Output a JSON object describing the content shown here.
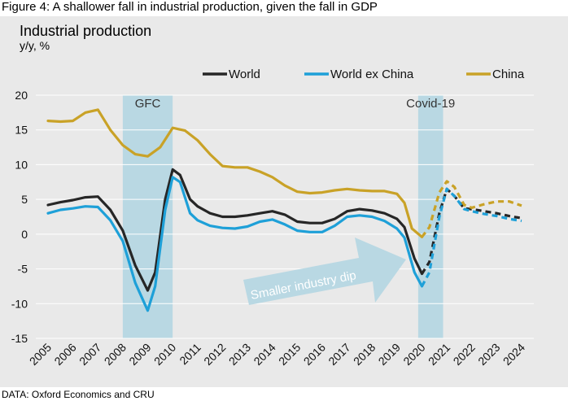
{
  "figure_title": "Figure 4: A shallower fall in industrial production, given the fall in GDP",
  "source": "DATA: Oxford Economics and CRU",
  "colors": {
    "world": "#262626",
    "world_ex_china": "#1ea0d8",
    "china": "#c9a227",
    "shade": "#b9d8e3",
    "arrow": "#b9d8e3",
    "panel": "#e9e9e9",
    "grid": "#ffffff"
  },
  "chart_data": {
    "type": "line",
    "title": "Industrial production",
    "ylabel": "y/y, %",
    "xlabel": "",
    "ylim": [
      -15,
      20
    ],
    "yticks": [
      20,
      15,
      10,
      5,
      0,
      -5,
      -10,
      -15
    ],
    "x_ticks": [
      "2005",
      "2006",
      "2007",
      "2008",
      "2009",
      "2010",
      "2011",
      "2012",
      "2013",
      "2014",
      "2015",
      "2016",
      "2017",
      "2018",
      "2019",
      "2020",
      "2021",
      "2022",
      "2023",
      "2024"
    ],
    "legend_position": "top",
    "grid": true,
    "forecast_from": 2020.0,
    "series": [
      {
        "name": "World",
        "color": "#262626",
        "points": [
          [
            2005.0,
            4.2
          ],
          [
            2005.5,
            4.6
          ],
          [
            2006.0,
            4.9
          ],
          [
            2006.5,
            5.3
          ],
          [
            2007.0,
            5.4
          ],
          [
            2007.5,
            3.5
          ],
          [
            2008.0,
            0.5
          ],
          [
            2008.5,
            -4.5
          ],
          [
            2009.0,
            -8.1
          ],
          [
            2009.3,
            -5.5
          ],
          [
            2009.7,
            5.0
          ],
          [
            2010.0,
            9.3
          ],
          [
            2010.3,
            8.5
          ],
          [
            2010.7,
            5.0
          ],
          [
            2011.0,
            4.0
          ],
          [
            2011.5,
            3.0
          ],
          [
            2012.0,
            2.5
          ],
          [
            2012.5,
            2.5
          ],
          [
            2013.0,
            2.7
          ],
          [
            2013.5,
            3.0
          ],
          [
            2014.0,
            3.3
          ],
          [
            2014.5,
            2.8
          ],
          [
            2015.0,
            1.8
          ],
          [
            2015.5,
            1.6
          ],
          [
            2016.0,
            1.6
          ],
          [
            2016.5,
            2.2
          ],
          [
            2017.0,
            3.3
          ],
          [
            2017.5,
            3.6
          ],
          [
            2018.0,
            3.4
          ],
          [
            2018.5,
            3.0
          ],
          [
            2019.0,
            2.2
          ],
          [
            2019.3,
            1.0
          ],
          [
            2019.7,
            -3.5
          ],
          [
            2020.0,
            -5.7
          ],
          [
            2020.3,
            -4.0
          ],
          [
            2020.7,
            3.0
          ],
          [
            2021.0,
            6.5
          ],
          [
            2021.3,
            5.5
          ],
          [
            2021.7,
            3.7
          ],
          [
            2022.0,
            3.6
          ],
          [
            2022.5,
            3.3
          ],
          [
            2023.0,
            3.0
          ],
          [
            2023.5,
            2.6
          ],
          [
            2024.0,
            2.3
          ]
        ]
      },
      {
        "name": "World ex China",
        "color": "#1ea0d8",
        "points": [
          [
            2005.0,
            3.0
          ],
          [
            2005.5,
            3.5
          ],
          [
            2006.0,
            3.7
          ],
          [
            2006.5,
            4.0
          ],
          [
            2007.0,
            3.9
          ],
          [
            2007.5,
            2.0
          ],
          [
            2008.0,
            -1.0
          ],
          [
            2008.5,
            -7.0
          ],
          [
            2009.0,
            -11.0
          ],
          [
            2009.3,
            -7.5
          ],
          [
            2009.7,
            3.5
          ],
          [
            2010.0,
            8.2
          ],
          [
            2010.3,
            7.5
          ],
          [
            2010.7,
            3.0
          ],
          [
            2011.0,
            2.0
          ],
          [
            2011.5,
            1.2
          ],
          [
            2012.0,
            0.9
          ],
          [
            2012.5,
            0.8
          ],
          [
            2013.0,
            1.1
          ],
          [
            2013.5,
            1.8
          ],
          [
            2014.0,
            2.1
          ],
          [
            2014.5,
            1.4
          ],
          [
            2015.0,
            0.5
          ],
          [
            2015.5,
            0.3
          ],
          [
            2016.0,
            0.3
          ],
          [
            2016.5,
            1.2
          ],
          [
            2017.0,
            2.5
          ],
          [
            2017.5,
            2.7
          ],
          [
            2018.0,
            2.5
          ],
          [
            2018.5,
            1.9
          ],
          [
            2019.0,
            0.8
          ],
          [
            2019.3,
            -0.5
          ],
          [
            2019.7,
            -5.5
          ],
          [
            2020.0,
            -7.5
          ],
          [
            2020.3,
            -5.5
          ],
          [
            2020.7,
            2.5
          ],
          [
            2021.0,
            6.5
          ],
          [
            2021.3,
            5.5
          ],
          [
            2021.7,
            3.6
          ],
          [
            2022.0,
            3.3
          ],
          [
            2022.5,
            2.9
          ],
          [
            2023.0,
            2.6
          ],
          [
            2023.5,
            2.2
          ],
          [
            2024.0,
            1.9
          ]
        ]
      },
      {
        "name": "China",
        "color": "#c9a227",
        "points": [
          [
            2005.0,
            16.3
          ],
          [
            2005.5,
            16.2
          ],
          [
            2006.0,
            16.3
          ],
          [
            2006.5,
            17.5
          ],
          [
            2007.0,
            17.9
          ],
          [
            2007.5,
            15.0
          ],
          [
            2008.0,
            12.8
          ],
          [
            2008.5,
            11.5
          ],
          [
            2009.0,
            11.2
          ],
          [
            2009.5,
            12.5
          ],
          [
            2010.0,
            15.3
          ],
          [
            2010.5,
            14.9
          ],
          [
            2011.0,
            13.5
          ],
          [
            2011.5,
            11.5
          ],
          [
            2012.0,
            9.8
          ],
          [
            2012.5,
            9.6
          ],
          [
            2013.0,
            9.6
          ],
          [
            2013.5,
            9.0
          ],
          [
            2014.0,
            8.2
          ],
          [
            2014.5,
            7.0
          ],
          [
            2015.0,
            6.1
          ],
          [
            2015.5,
            5.9
          ],
          [
            2016.0,
            6.0
          ],
          [
            2016.5,
            6.3
          ],
          [
            2017.0,
            6.5
          ],
          [
            2017.5,
            6.3
          ],
          [
            2018.0,
            6.2
          ],
          [
            2018.5,
            6.2
          ],
          [
            2019.0,
            5.8
          ],
          [
            2019.3,
            4.5
          ],
          [
            2019.6,
            0.8
          ],
          [
            2020.0,
            -0.4
          ],
          [
            2020.3,
            1.0
          ],
          [
            2020.7,
            6.0
          ],
          [
            2021.0,
            7.6
          ],
          [
            2021.3,
            6.8
          ],
          [
            2021.7,
            4.2
          ],
          [
            2022.0,
            3.8
          ],
          [
            2022.5,
            4.3
          ],
          [
            2023.0,
            4.7
          ],
          [
            2023.5,
            4.7
          ],
          [
            2024.0,
            4.1
          ]
        ]
      }
    ],
    "shaded_regions": [
      {
        "label": "GFC",
        "x": [
          2008.0,
          2010.0
        ]
      },
      {
        "label": "Covid-19",
        "x": [
          2019.85,
          2020.85
        ]
      }
    ],
    "annotations": [
      {
        "text": "Smaller industry dip"
      }
    ]
  }
}
